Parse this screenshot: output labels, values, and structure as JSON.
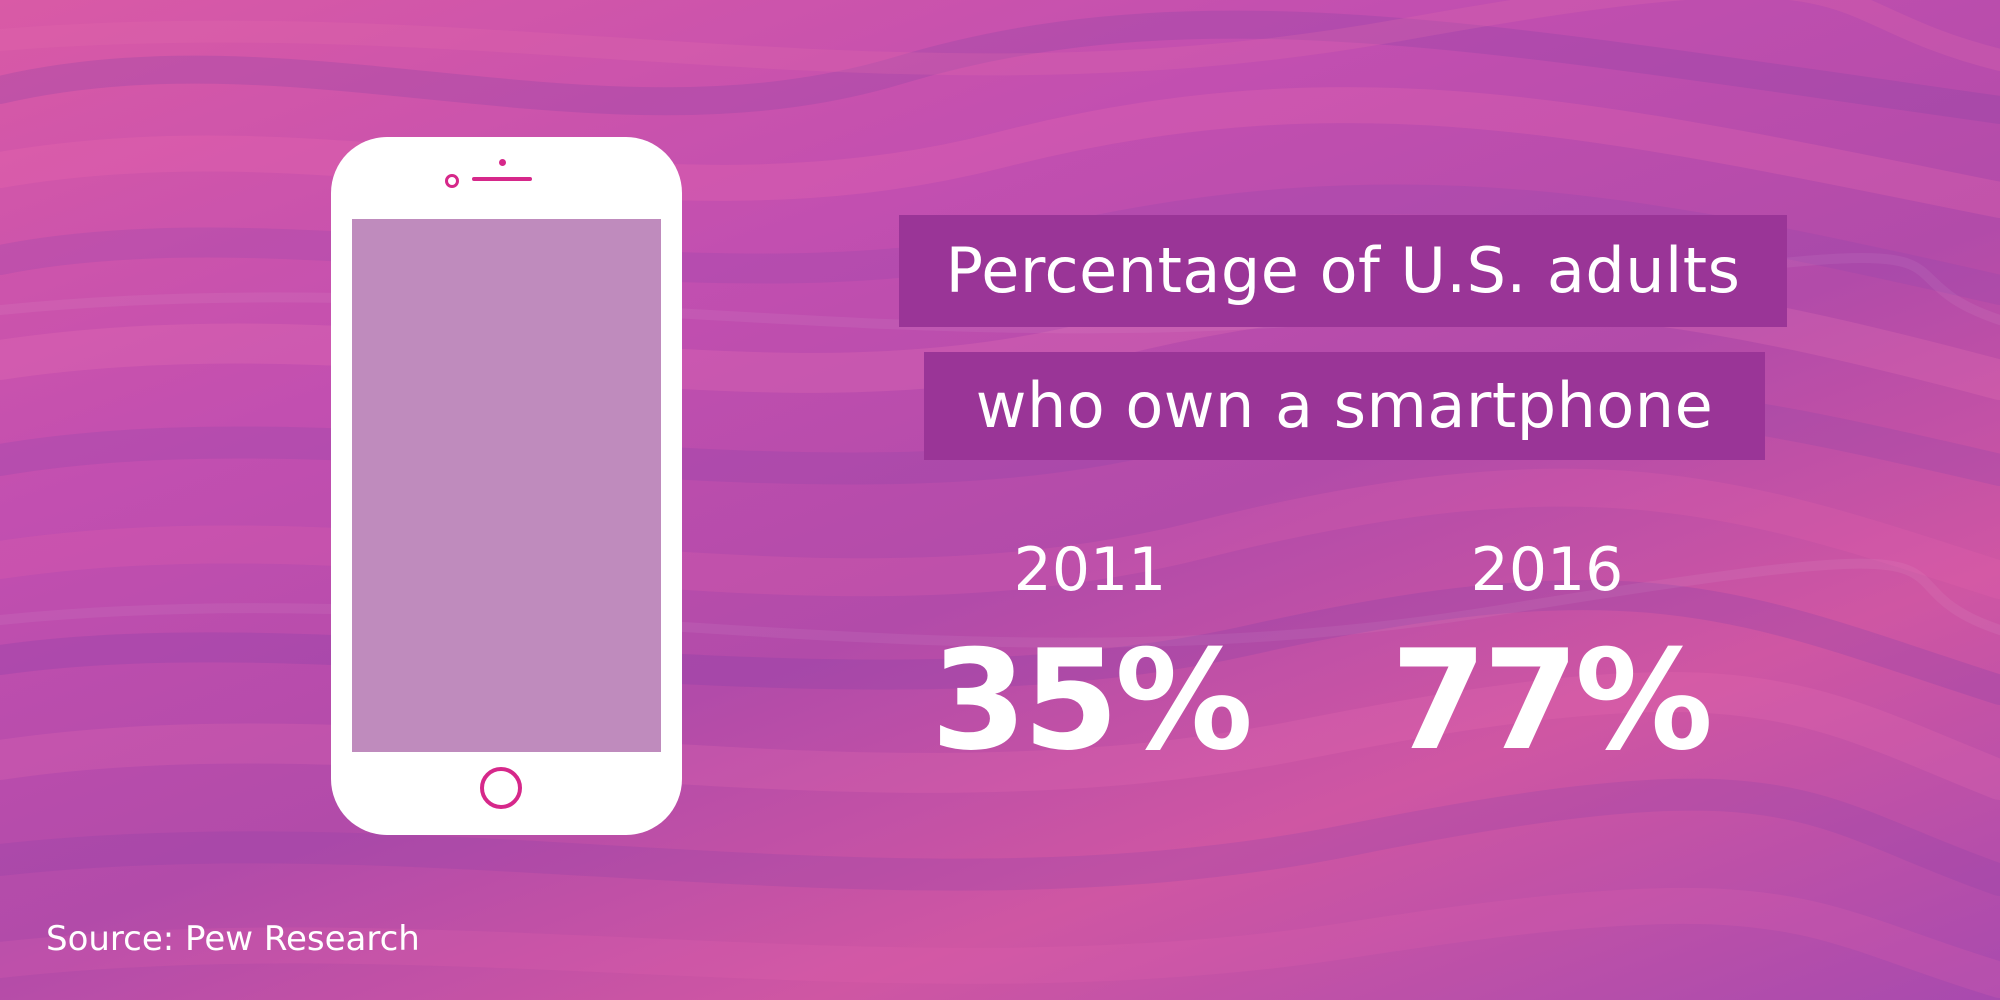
{
  "background": {
    "base_color": "#c652ab",
    "accent_color": "#9a3597"
  },
  "phone": {
    "icon": "smartphone-icon",
    "body_color": "#ffffff",
    "screen_color": "#bf8bbd",
    "accent_color": "#d6288a"
  },
  "title": {
    "line1": "Percentage of U.S. adults",
    "line2": "who own a smartphone"
  },
  "stats": [
    {
      "year": "2011",
      "value": "35%"
    },
    {
      "year": "2016",
      "value": "77%"
    }
  ],
  "source": "Source: Pew Research"
}
